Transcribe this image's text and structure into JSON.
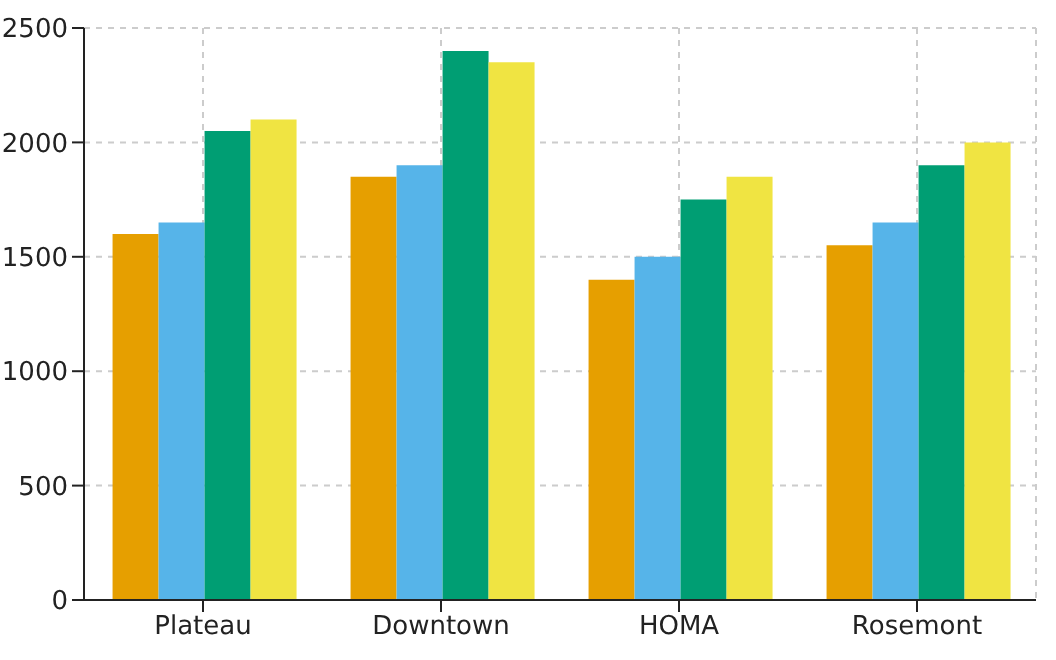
{
  "chart_data": {
    "type": "bar",
    "categories": [
      "Plateau",
      "Downtown",
      "HOMA",
      "Rosemont"
    ],
    "series": [
      {
        "color": "#e69f00",
        "values": [
          1600,
          1850,
          1400,
          1550
        ]
      },
      {
        "color": "#56b4e9",
        "values": [
          1650,
          1900,
          1500,
          1650
        ]
      },
      {
        "color": "#009e73",
        "values": [
          2050,
          2400,
          1750,
          1900
        ]
      },
      {
        "color": "#f0e442",
        "values": [
          2100,
          2350,
          1850,
          2000
        ]
      }
    ],
    "ylim": [
      0,
      2500
    ],
    "yticks": [
      0,
      500,
      1000,
      1500,
      2000,
      2500
    ],
    "grid": true,
    "legend": false
  }
}
